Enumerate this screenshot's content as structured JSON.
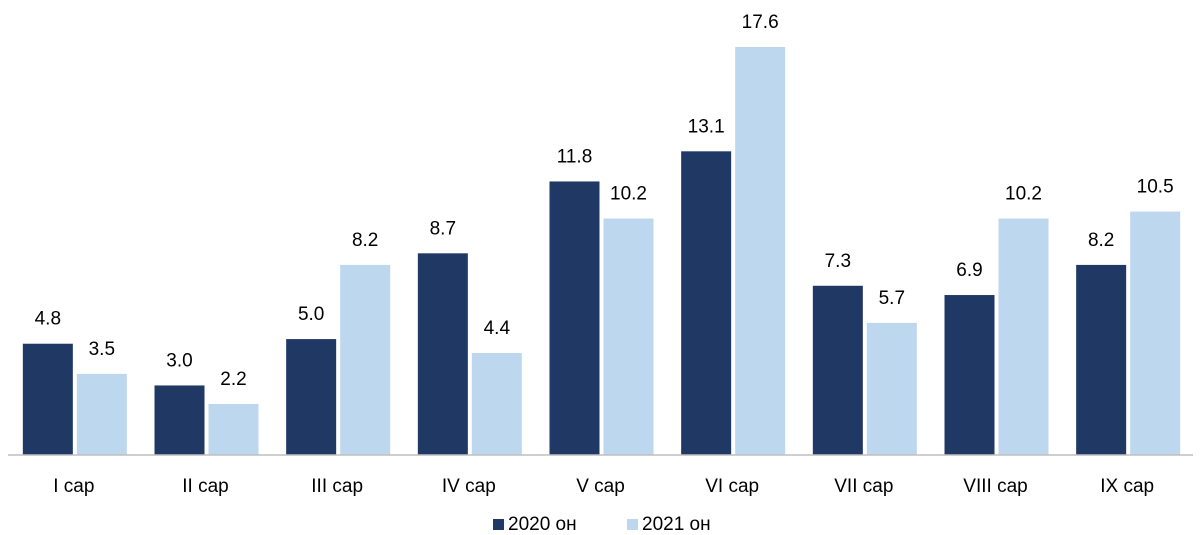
{
  "chart_data": {
    "type": "bar",
    "categories": [
      "I сар",
      "II сар",
      "III сар",
      "IV сар",
      "V сар",
      "VI сар",
      "VII сар",
      "VIII сар",
      "IX сар"
    ],
    "series": [
      {
        "name": "2020 он",
        "color": "#203864",
        "values": [
          4.8,
          3.0,
          5.0,
          8.7,
          11.8,
          13.1,
          7.3,
          6.9,
          8.2
        ],
        "value_labels": [
          "4.8",
          "3.0",
          "5.0",
          "8.7",
          "11.8",
          "13.1",
          "7.3",
          "6.9",
          "8.2"
        ]
      },
      {
        "name": "2021 он",
        "color": "#bdd7ee",
        "values": [
          3.5,
          2.2,
          8.2,
          4.4,
          10.2,
          17.6,
          5.7,
          10.2,
          10.5
        ],
        "value_labels": [
          "3.5",
          "2.2",
          "8.2",
          "4.4",
          "10.2",
          "17.6",
          "5.7",
          "10.2",
          "10.5"
        ]
      }
    ],
    "legend": "bottom"
  }
}
